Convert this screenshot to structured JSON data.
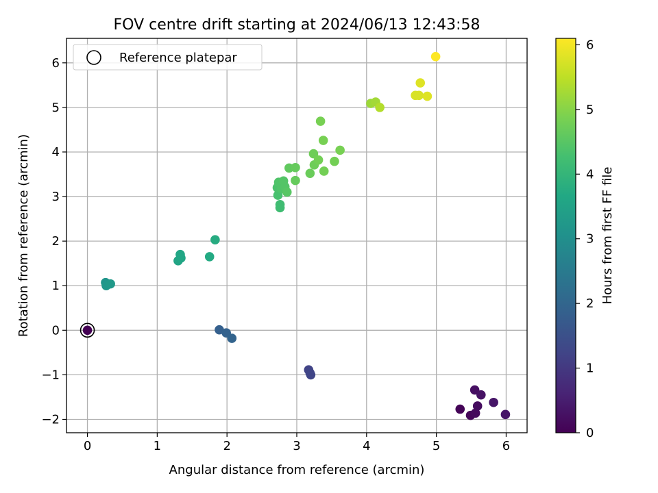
{
  "chart_data": {
    "type": "scatter",
    "title": "FOV centre drift starting at 2024/06/13 12:43:58",
    "xlabel": "Angular distance from reference (arcmin)",
    "ylabel": "Rotation from reference (arcmin)",
    "xlim": [
      -0.3,
      6.3
    ],
    "ylim": [
      -2.3,
      6.55
    ],
    "xticks": [
      0,
      1,
      2,
      3,
      4,
      5,
      6
    ],
    "xtick_labels": [
      "0",
      "1",
      "2",
      "3",
      "4",
      "5",
      "6"
    ],
    "yticks": [
      -2,
      -1,
      0,
      1,
      2,
      3,
      4,
      5,
      6
    ],
    "ytick_labels": [
      "−2",
      "−1",
      "0",
      "1",
      "2",
      "3",
      "4",
      "5",
      "6"
    ],
    "grid": true,
    "legend": {
      "placement": "top-left",
      "entries": [
        "Reference platepar"
      ]
    },
    "reference_point": {
      "x": 0,
      "y": 0
    },
    "colorbar": {
      "label": "Hours from first FF file",
      "min": 0,
      "max": 6.1,
      "ticks": [
        0,
        1,
        2,
        3,
        4,
        5,
        6
      ],
      "tick_labels": [
        "0",
        "1",
        "2",
        "3",
        "4",
        "5",
        "6"
      ],
      "colormap": "viridis"
    },
    "points": [
      {
        "x": 0.0,
        "y": 0.0,
        "h": 0.0
      },
      {
        "x": 5.34,
        "y": -1.77,
        "h": 0.05
      },
      {
        "x": 5.49,
        "y": -1.91,
        "h": 0.1
      },
      {
        "x": 5.56,
        "y": -1.86,
        "h": 0.15
      },
      {
        "x": 5.59,
        "y": -1.7,
        "h": 0.2
      },
      {
        "x": 5.55,
        "y": -1.34,
        "h": 0.25
      },
      {
        "x": 5.64,
        "y": -1.45,
        "h": 0.3
      },
      {
        "x": 5.82,
        "y": -1.62,
        "h": 0.35
      },
      {
        "x": 5.99,
        "y": -1.89,
        "h": 0.35
      },
      {
        "x": 3.17,
        "y": -0.89,
        "h": 1.2
      },
      {
        "x": 3.19,
        "y": -0.96,
        "h": 1.25
      },
      {
        "x": 3.2,
        "y": -1.0,
        "h": 1.25
      },
      {
        "x": 1.89,
        "y": 0.01,
        "h": 1.85
      },
      {
        "x": 1.99,
        "y": -0.06,
        "h": 1.9
      },
      {
        "x": 2.07,
        "y": -0.18,
        "h": 1.95
      },
      {
        "x": 0.26,
        "y": 1.07,
        "h": 3.15
      },
      {
        "x": 0.27,
        "y": 1.0,
        "h": 3.2
      },
      {
        "x": 0.33,
        "y": 1.04,
        "h": 3.25
      },
      {
        "x": 1.3,
        "y": 1.56,
        "h": 3.55
      },
      {
        "x": 1.34,
        "y": 1.62,
        "h": 3.6
      },
      {
        "x": 1.33,
        "y": 1.7,
        "h": 3.6
      },
      {
        "x": 1.75,
        "y": 1.65,
        "h": 3.7
      },
      {
        "x": 1.83,
        "y": 2.03,
        "h": 3.75
      },
      {
        "x": 2.76,
        "y": 2.75,
        "h": 4.2
      },
      {
        "x": 2.76,
        "y": 2.82,
        "h": 4.2
      },
      {
        "x": 2.73,
        "y": 3.03,
        "h": 4.3
      },
      {
        "x": 2.72,
        "y": 3.2,
        "h": 4.35
      },
      {
        "x": 2.78,
        "y": 3.18,
        "h": 4.4
      },
      {
        "x": 2.74,
        "y": 3.32,
        "h": 4.4
      },
      {
        "x": 2.81,
        "y": 3.35,
        "h": 4.45
      },
      {
        "x": 2.83,
        "y": 3.22,
        "h": 4.45
      },
      {
        "x": 2.86,
        "y": 3.1,
        "h": 4.5
      },
      {
        "x": 2.89,
        "y": 3.64,
        "h": 4.6
      },
      {
        "x": 2.98,
        "y": 3.65,
        "h": 4.65
      },
      {
        "x": 2.98,
        "y": 3.36,
        "h": 4.65
      },
      {
        "x": 3.19,
        "y": 3.52,
        "h": 4.7
      },
      {
        "x": 3.24,
        "y": 3.96,
        "h": 4.75
      },
      {
        "x": 3.25,
        "y": 3.71,
        "h": 4.75
      },
      {
        "x": 3.31,
        "y": 3.82,
        "h": 4.8
      },
      {
        "x": 3.34,
        "y": 4.69,
        "h": 4.85
      },
      {
        "x": 3.38,
        "y": 4.26,
        "h": 4.85
      },
      {
        "x": 3.39,
        "y": 3.57,
        "h": 4.8
      },
      {
        "x": 3.54,
        "y": 3.79,
        "h": 4.8
      },
      {
        "x": 3.62,
        "y": 4.04,
        "h": 4.85
      },
      {
        "x": 4.06,
        "y": 5.09,
        "h": 5.2
      },
      {
        "x": 4.13,
        "y": 5.12,
        "h": 5.25
      },
      {
        "x": 4.19,
        "y": 5.0,
        "h": 5.4
      },
      {
        "x": 4.7,
        "y": 5.27,
        "h": 5.75
      },
      {
        "x": 4.75,
        "y": 5.27,
        "h": 5.75
      },
      {
        "x": 4.77,
        "y": 5.55,
        "h": 5.8
      },
      {
        "x": 4.87,
        "y": 5.25,
        "h": 5.8
      },
      {
        "x": 4.99,
        "y": 6.14,
        "h": 6.1
      }
    ]
  }
}
